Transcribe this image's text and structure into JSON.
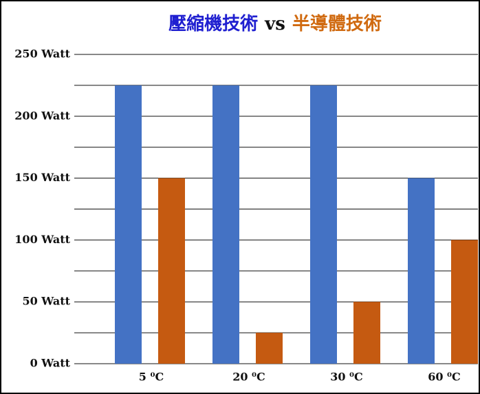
{
  "chart_data": {
    "type": "bar",
    "title_parts": [
      {
        "text": "壓縮機技術",
        "color": "#1f1fd0"
      },
      {
        "text": "vs",
        "color": "#111111"
      },
      {
        "text": "半導體技術",
        "color": "#d06a10"
      }
    ],
    "categories": [
      "5 ⁰C",
      "20 ⁰C",
      "30 ⁰C",
      "60 ⁰C"
    ],
    "series": [
      {
        "color": "#4472c4",
        "values": [
          225,
          225,
          225,
          150
        ]
      },
      {
        "color": "#c55a11",
        "values": [
          150,
          25,
          50,
          100
        ]
      }
    ],
    "ylim": [
      0,
      250
    ],
    "yticks": [
      {
        "value": 0,
        "label": "0 Watt"
      },
      {
        "value": 50,
        "label": "50 Watt"
      },
      {
        "value": 100,
        "label": "100 Watt"
      },
      {
        "value": 150,
        "label": "150 Watt"
      },
      {
        "value": 200,
        "label": "200 Watt"
      },
      {
        "value": 250,
        "label": "250 Watt"
      }
    ],
    "minor_yticks": [
      25,
      75,
      125,
      175,
      225
    ],
    "grid": true
  }
}
